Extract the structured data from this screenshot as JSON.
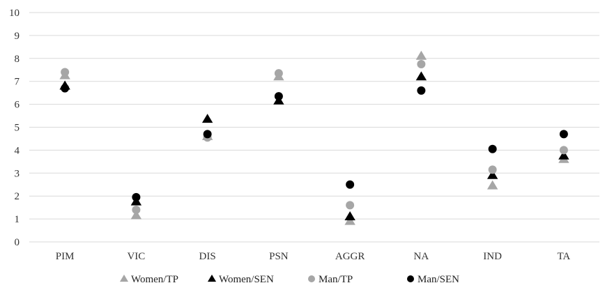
{
  "chart_data": {
    "type": "scatter",
    "categories": [
      "PIM",
      "VIC",
      "DIS",
      "PSN",
      "AGGR",
      "NA",
      "IND",
      "TA"
    ],
    "ylim": [
      0,
      10
    ],
    "yticks": [
      "0",
      "1",
      "2",
      "3",
      "4",
      "5",
      "6",
      "7",
      "8",
      "9",
      "10"
    ],
    "grid": true,
    "legend_position": "bottom",
    "series": [
      {
        "name": "Women/TP",
        "marker": "triangle",
        "color": "#a6a6a6",
        "values": [
          7.25,
          1.15,
          4.6,
          7.2,
          0.9,
          8.1,
          2.45,
          3.6
        ]
      },
      {
        "name": "Women/SEN",
        "marker": "triangle",
        "color": "#000000",
        "values": [
          6.8,
          1.75,
          5.35,
          6.15,
          1.1,
          7.2,
          2.9,
          3.75
        ]
      },
      {
        "name": "Man/TP",
        "marker": "circle",
        "color": "#a6a6a6",
        "values": [
          7.4,
          1.4,
          4.55,
          7.35,
          1.6,
          7.75,
          3.15,
          4.0
        ]
      },
      {
        "name": "Man/SEN",
        "marker": "circle",
        "color": "#000000",
        "values": [
          6.7,
          1.95,
          4.7,
          6.35,
          2.5,
          6.6,
          4.05,
          4.7
        ]
      }
    ]
  }
}
